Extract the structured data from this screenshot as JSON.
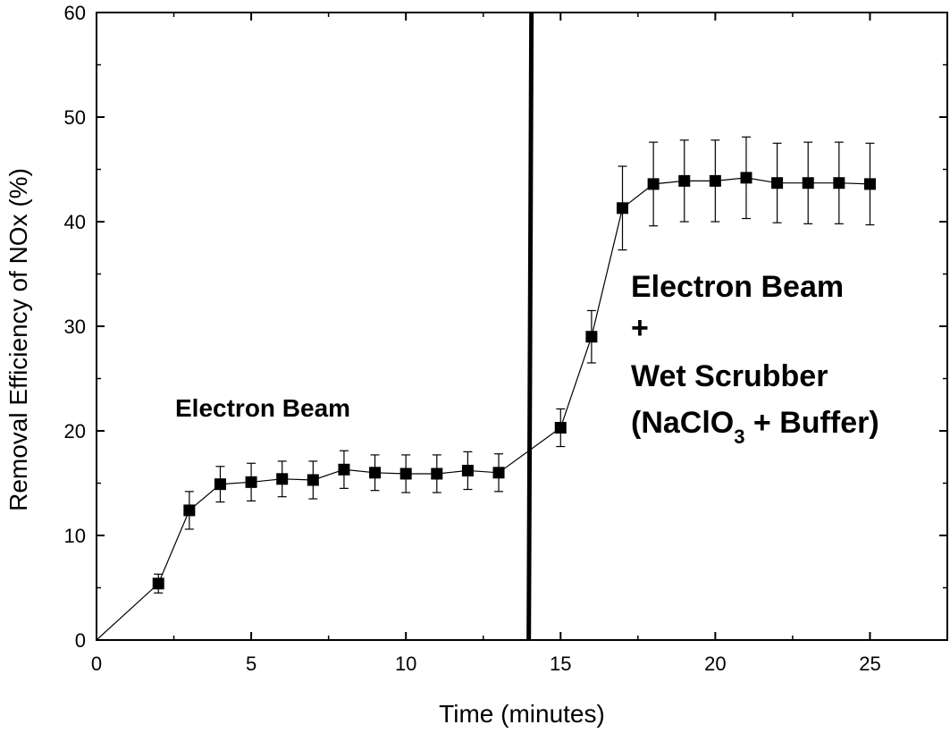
{
  "chart_data": {
    "type": "scatter",
    "title": "",
    "xlabel": "Time (minutes)",
    "ylabel": "Removal Efficiency of NOx (%)",
    "xlim": [
      0,
      27.5
    ],
    "ylim": [
      0,
      60
    ],
    "xticks": [
      0,
      5,
      10,
      15,
      20,
      25
    ],
    "yticks": [
      0,
      10,
      20,
      30,
      40,
      50,
      60
    ],
    "grid": false,
    "connected": true,
    "markers": "filled-square",
    "x": [
      0,
      2,
      3,
      4,
      5,
      6,
      7,
      8,
      9,
      10,
      11,
      12,
      13,
      15,
      16,
      17,
      18,
      19,
      20,
      21,
      22,
      23,
      24,
      25
    ],
    "y": [
      0,
      5.4,
      12.4,
      14.9,
      15.1,
      15.4,
      15.3,
      16.3,
      16.0,
      15.9,
      15.9,
      16.2,
      16.0,
      20.3,
      29.0,
      41.3,
      43.6,
      43.9,
      43.9,
      44.2,
      43.7,
      43.7,
      43.7,
      43.6
    ],
    "error": [
      null,
      0.9,
      1.8,
      1.7,
      1.8,
      1.7,
      1.8,
      1.8,
      1.7,
      1.8,
      1.8,
      1.8,
      1.8,
      1.8,
      2.5,
      4.0,
      4.0,
      3.9,
      3.9,
      3.9,
      3.8,
      3.9,
      3.9,
      3.9
    ],
    "divider_x": 14,
    "annotations": {
      "left": "Electron Beam",
      "right_line1": "Electron Beam",
      "right_line2": "+",
      "right_line3": "Wet Scrubber",
      "right_line4_pre": "(NaClO",
      "right_line4_sub": "3",
      "right_line4_post": " + Buffer)"
    }
  }
}
